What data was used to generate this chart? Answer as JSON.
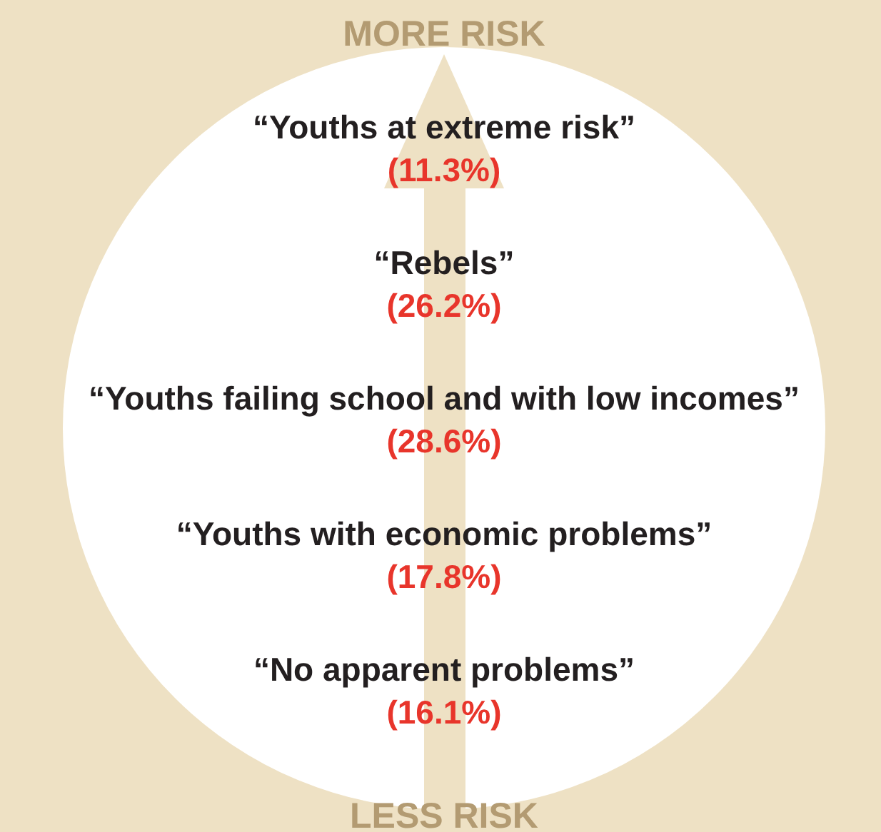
{
  "chart_data": {
    "type": "other",
    "categories": [
      "“Youths at extreme risk”",
      "“Rebels”",
      "“Youths failing school and with low incomes”",
      "“Youths with economic problems”",
      "“No apparent problems”"
    ],
    "values": [
      11.3,
      26.2,
      28.6,
      17.8,
      16.1
    ],
    "value_labels": [
      "(11.3%)",
      "(26.2%)",
      "(28.6%)",
      "(17.8%)",
      "(16.1%)"
    ],
    "annotations": [
      "MORE RISK",
      "LESS RISK"
    ]
  }
}
